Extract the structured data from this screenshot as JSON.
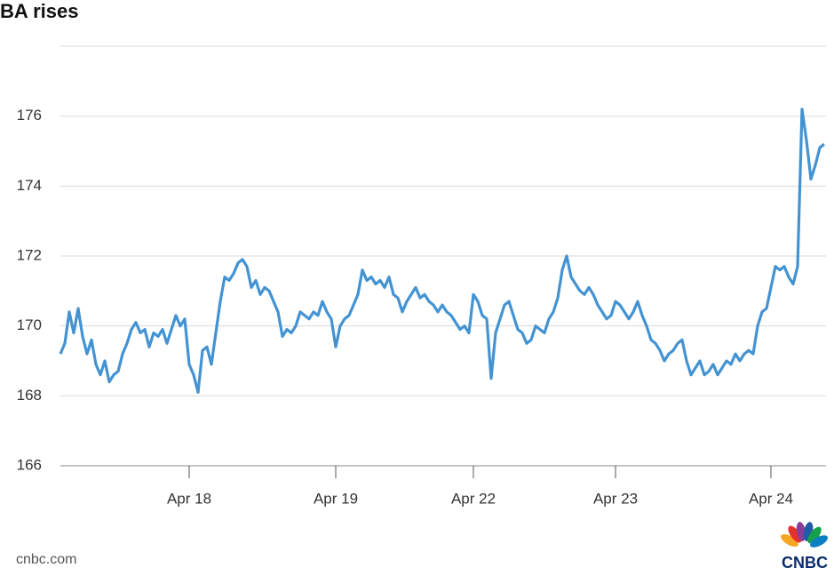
{
  "chart_data": {
    "type": "line",
    "title": "BA rises",
    "source": "cnbc.com",
    "logo": "CNBC",
    "categories": [
      null,
      null,
      null,
      null,
      null,
      null,
      null,
      null,
      null,
      null,
      null,
      null,
      null,
      null,
      null,
      null,
      null,
      null,
      null,
      null,
      null,
      null,
      null,
      null,
      null,
      null,
      null,
      null,
      null,
      "Apr 18",
      null,
      null,
      null,
      null,
      null,
      null,
      null,
      null,
      null,
      null,
      null,
      null,
      null,
      null,
      null,
      null,
      null,
      null,
      null,
      null,
      null,
      null,
      null,
      null,
      null,
      null,
      null,
      null,
      null,
      null,
      null,
      null,
      "Apr 19",
      null,
      null,
      null,
      null,
      null,
      null,
      null,
      null,
      null,
      null,
      null,
      null,
      null,
      null,
      null,
      null,
      null,
      null,
      null,
      null,
      null,
      null,
      null,
      null,
      null,
      null,
      null,
      null,
      null,
      null,
      "Apr 22",
      null,
      null,
      null,
      null,
      null,
      null,
      null,
      null,
      null,
      null,
      null,
      null,
      null,
      null,
      null,
      null,
      null,
      null,
      null,
      null,
      null,
      null,
      null,
      null,
      null,
      null,
      null,
      null,
      null,
      null,
      null,
      "Apr 23",
      null,
      null,
      null,
      null,
      null,
      null,
      null,
      null,
      null,
      null,
      null,
      null,
      null,
      null,
      null,
      null,
      null,
      null,
      null,
      null,
      null,
      null,
      null,
      null,
      null,
      null,
      null,
      null,
      null,
      null,
      null,
      null,
      null,
      null,
      "Apr 24",
      null,
      null,
      null,
      null,
      null,
      null,
      null,
      null,
      null,
      null,
      null,
      null
    ],
    "series": [
      {
        "name": "BA",
        "color": "#4393d3",
        "values": [
          169.2,
          169.5,
          170.4,
          169.8,
          170.5,
          169.7,
          169.2,
          169.6,
          168.9,
          168.6,
          169.0,
          168.4,
          168.6,
          168.7,
          169.2,
          169.5,
          169.9,
          170.1,
          169.8,
          169.9,
          169.4,
          169.8,
          169.7,
          169.9,
          169.5,
          169.9,
          170.3,
          170.0,
          170.2,
          168.9,
          168.6,
          168.1,
          169.3,
          169.4,
          168.9,
          169.8,
          170.7,
          171.4,
          171.3,
          171.5,
          171.8,
          171.9,
          171.7,
          171.1,
          171.3,
          170.9,
          171.1,
          171.0,
          170.7,
          170.4,
          169.7,
          169.9,
          169.8,
          170.0,
          170.4,
          170.3,
          170.2,
          170.4,
          170.3,
          170.7,
          170.4,
          170.2,
          169.4,
          170.0,
          170.2,
          170.3,
          170.6,
          170.9,
          171.6,
          171.3,
          171.4,
          171.2,
          171.3,
          171.1,
          171.4,
          170.9,
          170.8,
          170.4,
          170.7,
          170.9,
          171.1,
          170.8,
          170.9,
          170.7,
          170.6,
          170.4,
          170.6,
          170.4,
          170.3,
          170.1,
          169.9,
          170.0,
          169.8,
          170.9,
          170.7,
          170.3,
          170.2,
          168.5,
          169.8,
          170.2,
          170.6,
          170.7,
          170.3,
          169.9,
          169.8,
          169.5,
          169.6,
          170.0,
          169.9,
          169.8,
          170.2,
          170.4,
          170.8,
          171.6,
          172.0,
          171.4,
          171.2,
          171.0,
          170.9,
          171.1,
          170.9,
          170.6,
          170.4,
          170.2,
          170.3,
          170.7,
          170.6,
          170.4,
          170.2,
          170.4,
          170.7,
          170.3,
          170.0,
          169.6,
          169.5,
          169.3,
          169.0,
          169.2,
          169.3,
          169.5,
          169.6,
          169.0,
          168.6,
          168.8,
          169.0,
          168.6,
          168.7,
          168.9,
          168.6,
          168.8,
          169.0,
          168.9,
          169.2,
          169.0,
          169.2,
          169.3,
          169.2,
          170.0,
          170.4,
          170.5,
          171.1,
          171.7,
          171.6,
          171.7,
          171.4,
          171.2,
          171.7,
          176.2,
          175.3,
          174.2,
          174.6,
          175.1,
          175.2
        ]
      }
    ],
    "ylim": [
      166,
      178
    ],
    "yticks": [
      166,
      168,
      170,
      172,
      174,
      176
    ],
    "grid": true
  }
}
